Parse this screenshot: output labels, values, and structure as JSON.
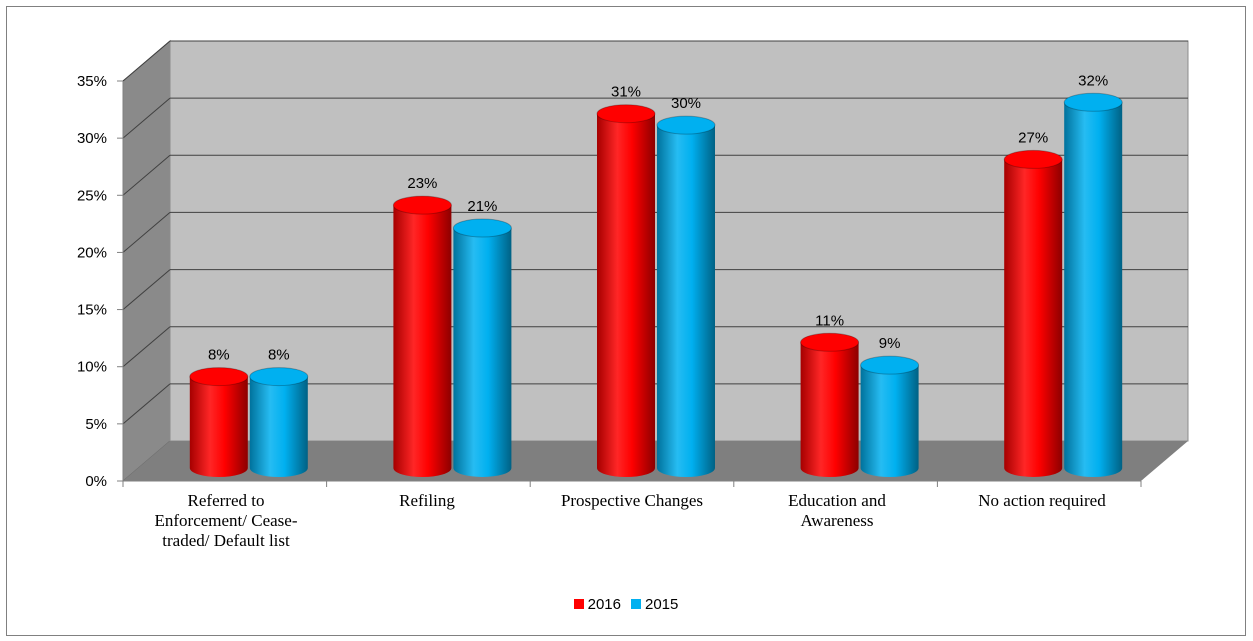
{
  "colors": {
    "series_2016": "#ff0000",
    "series_2015": "#00b0f0",
    "wall": "#c0c0c0",
    "floor": "#7f7f7f",
    "side": "#8a8a8a",
    "grid": "#404040"
  },
  "chart_data": {
    "type": "bar",
    "style": "3d-cylinder",
    "categories": [
      "Referred to\nEnforcement/ Cease-\ntraded/ Default list",
      "Refiling",
      "Prospective Changes",
      "Education and\nAwareness",
      "No action required"
    ],
    "series": [
      {
        "name": "2016",
        "values": [
          8,
          23,
          31,
          11,
          27
        ],
        "labels": [
          "8%",
          "23%",
          "31%",
          "11%",
          "27%"
        ],
        "color": "#ff0000"
      },
      {
        "name": "2015",
        "values": [
          8,
          21,
          30,
          9,
          32
        ],
        "labels": [
          "8%",
          "21%",
          "30%",
          "9%",
          "32%"
        ],
        "color": "#00b0f0"
      }
    ],
    "y_ticks": [
      "0%",
      "5%",
      "10%",
      "15%",
      "20%",
      "25%",
      "30%",
      "35%"
    ],
    "ylim": [
      0,
      35
    ],
    "grid": true,
    "legend_position": "bottom"
  }
}
